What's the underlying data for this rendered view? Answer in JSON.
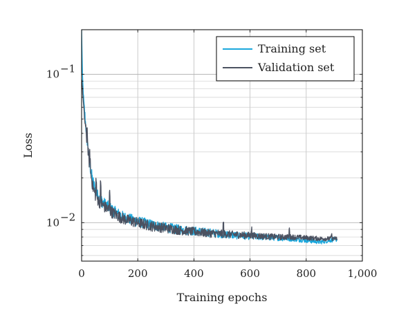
{
  "chart_data": {
    "type": "line",
    "xlabel": "Training epochs",
    "ylabel": "Loss",
    "xlim": [
      0,
      1000
    ],
    "ylim": [
      0.0055,
      0.2
    ],
    "yscale": "log",
    "grid": true,
    "legend_position": "top-right",
    "x_ticks": [
      0,
      200,
      400,
      600,
      800,
      1000
    ],
    "x_tick_labels": [
      "0",
      "200",
      "400",
      "600",
      "800",
      "1,000"
    ],
    "y_major_ticks": [
      {
        "value": 0.1,
        "base": "10",
        "exp": "−1"
      },
      {
        "value": 0.01,
        "base": "10",
        "exp": "−2"
      }
    ],
    "series": [
      {
        "name": "Training set",
        "color": "#1aa7dc",
        "x": [
          0,
          3,
          6,
          10,
          15,
          20,
          25,
          30,
          40,
          50,
          60,
          80,
          100,
          120,
          150,
          200,
          250,
          300,
          350,
          400,
          450,
          500,
          550,
          600,
          650,
          700,
          750,
          800,
          850,
          900,
          910
        ],
        "y": [
          0.2,
          0.1,
          0.075,
          0.058,
          0.045,
          0.036,
          0.029,
          0.024,
          0.019,
          0.0165,
          0.0148,
          0.0135,
          0.0126,
          0.0118,
          0.0109,
          0.0102,
          0.0097,
          0.0093,
          0.009,
          0.0088,
          0.0086,
          0.0084,
          0.0082,
          0.0081,
          0.008,
          0.0079,
          0.0078,
          0.0076,
          0.0074,
          0.0077,
          0.0077
        ]
      },
      {
        "name": "Validation set",
        "color": "#4b5160",
        "x": [
          0,
          3,
          6,
          10,
          15,
          20,
          25,
          30,
          40,
          50,
          60,
          80,
          100,
          120,
          150,
          200,
          250,
          300,
          350,
          400,
          450,
          500,
          550,
          600,
          650,
          700,
          750,
          800,
          850,
          900,
          910
        ],
        "y": [
          0.095,
          0.08,
          0.065,
          0.052,
          0.042,
          0.034,
          0.028,
          0.023,
          0.0175,
          0.0152,
          0.0141,
          0.0129,
          0.0121,
          0.0114,
          0.0106,
          0.01,
          0.0095,
          0.0092,
          0.0089,
          0.0087,
          0.0085,
          0.0084,
          0.0083,
          0.0082,
          0.0081,
          0.008,
          0.008,
          0.0079,
          0.0078,
          0.0078,
          0.0078
        ]
      }
    ]
  }
}
